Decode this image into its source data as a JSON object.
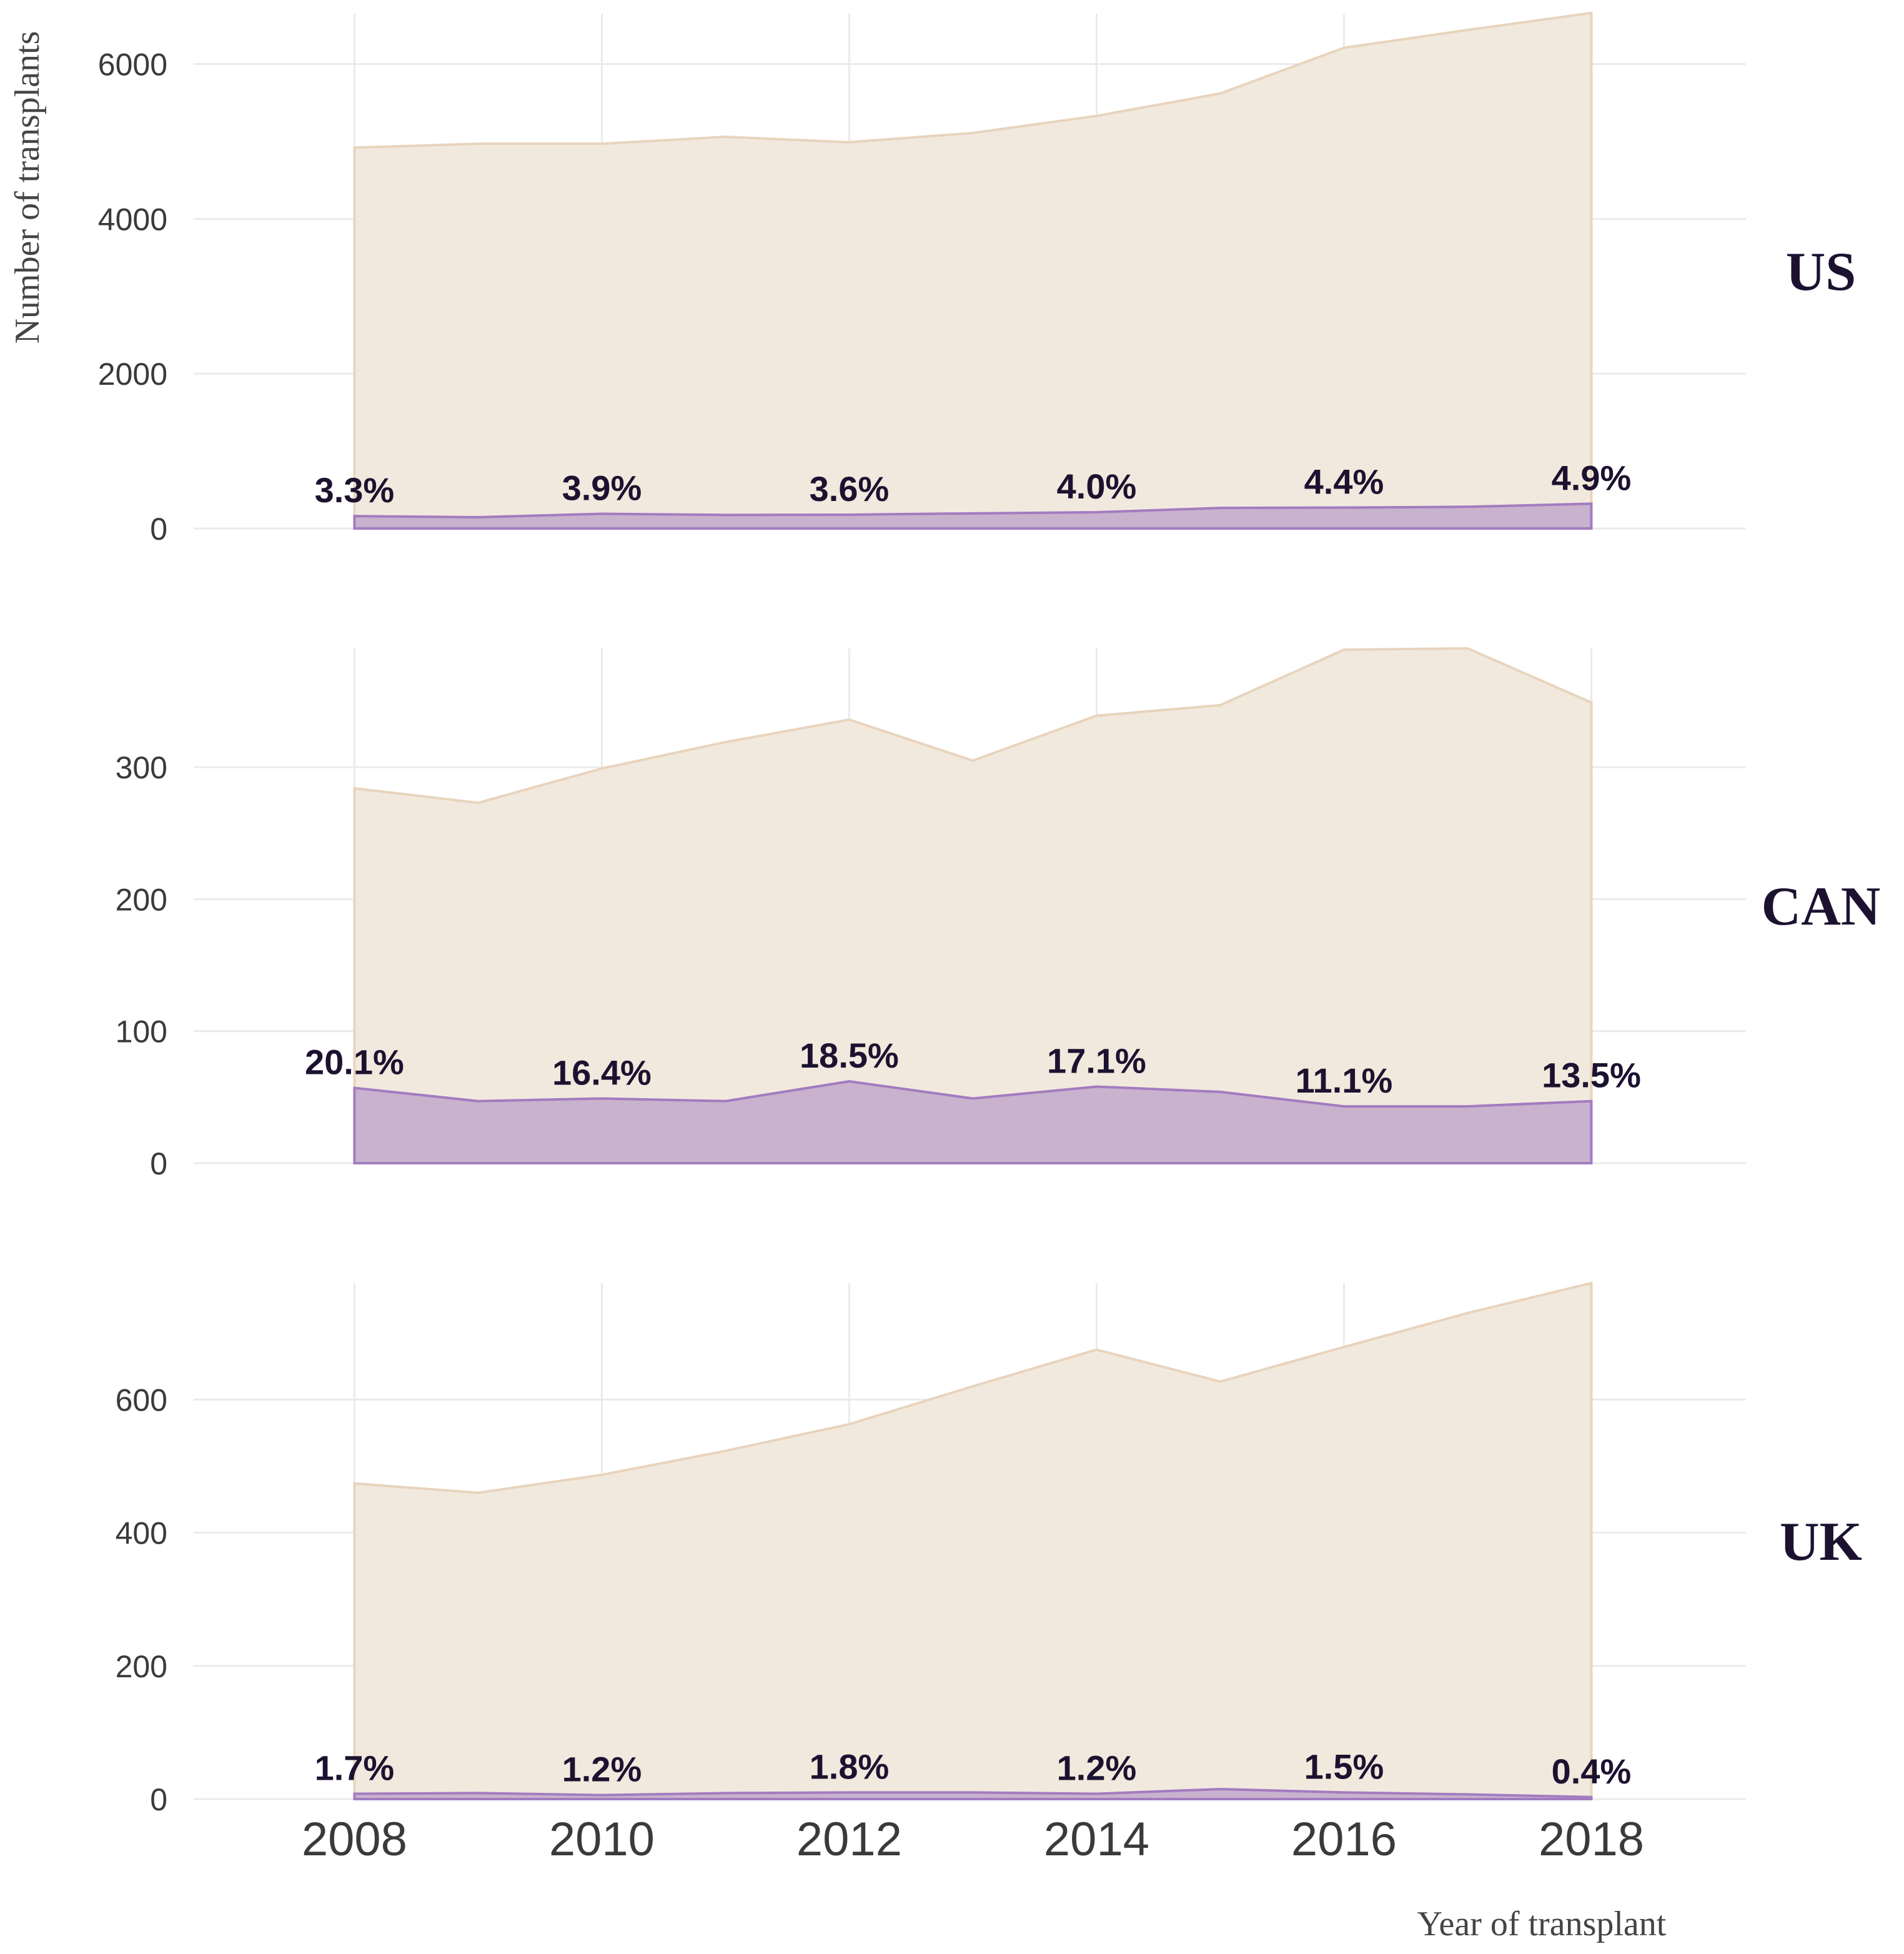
{
  "chart_data": {
    "type": "area",
    "xlabel": "Year of transplant",
    "ylabel": "Number of transplants",
    "x": [
      2008,
      2009,
      2010,
      2011,
      2012,
      2013,
      2014,
      2015,
      2016,
      2017,
      2018
    ],
    "xlim": [
      2006.7,
      2019.25
    ],
    "xticks": [
      2008,
      2010,
      2012,
      2014,
      2016,
      2018
    ],
    "grid": true,
    "colors": {
      "total": "#f2e9de",
      "total_line": "#e8d4bd",
      "subset": "#c9b2cd",
      "subset_line": "#a27cc0",
      "label": "#1c1230"
    },
    "panels": [
      {
        "label": "US",
        "ylim": [
          0,
          6650
        ],
        "yticks": [
          0,
          2000,
          4000,
          6000
        ],
        "total": [
          4920,
          4970,
          4970,
          5060,
          4990,
          5110,
          5330,
          5620,
          6210,
          6440,
          6660
        ],
        "subset": [
          160,
          145,
          190,
          175,
          178,
          195,
          210,
          265,
          270,
          280,
          320
        ],
        "pct_labels": [
          {
            "x": 2008,
            "text": "3.3%"
          },
          {
            "x": 2010,
            "text": "3.9%"
          },
          {
            "x": 2012,
            "text": "3.6%"
          },
          {
            "x": 2014,
            "text": "4.0%"
          },
          {
            "x": 2016,
            "text": "4.4%"
          },
          {
            "x": 2018,
            "text": "4.9%"
          }
        ]
      },
      {
        "label": "CAN",
        "ylim": [
          0,
          390
        ],
        "yticks": [
          0,
          100,
          200,
          300
        ],
        "total": [
          284,
          273,
          299,
          319,
          336,
          305,
          339,
          347,
          389,
          390,
          349
        ],
        "subset": [
          57,
          47,
          49,
          47,
          62,
          49,
          58,
          54,
          43,
          43,
          47
        ],
        "pct_labels": [
          {
            "x": 2008,
            "text": "20.1%"
          },
          {
            "x": 2010,
            "text": "16.4%"
          },
          {
            "x": 2012,
            "text": "18.5%"
          },
          {
            "x": 2014,
            "text": "17.1%"
          },
          {
            "x": 2016,
            "text": "11.1%"
          },
          {
            "x": 2018,
            "text": "13.5%"
          }
        ]
      },
      {
        "label": "UK",
        "ylim": [
          0,
          775
        ],
        "yticks": [
          0,
          200,
          400,
          600
        ],
        "total": [
          474,
          460,
          487,
          523,
          563,
          620,
          675,
          627,
          679,
          730,
          775
        ],
        "subset": [
          8,
          9,
          6,
          9,
          10,
          10,
          8,
          15,
          10,
          7,
          3
        ],
        "pct_labels": [
          {
            "x": 2008,
            "text": "1.7%"
          },
          {
            "x": 2010,
            "text": "1.2%"
          },
          {
            "x": 2012,
            "text": "1.8%"
          },
          {
            "x": 2014,
            "text": "1.2%"
          },
          {
            "x": 2016,
            "text": "1.5%"
          },
          {
            "x": 2018,
            "text": "0.4%"
          }
        ]
      }
    ]
  }
}
